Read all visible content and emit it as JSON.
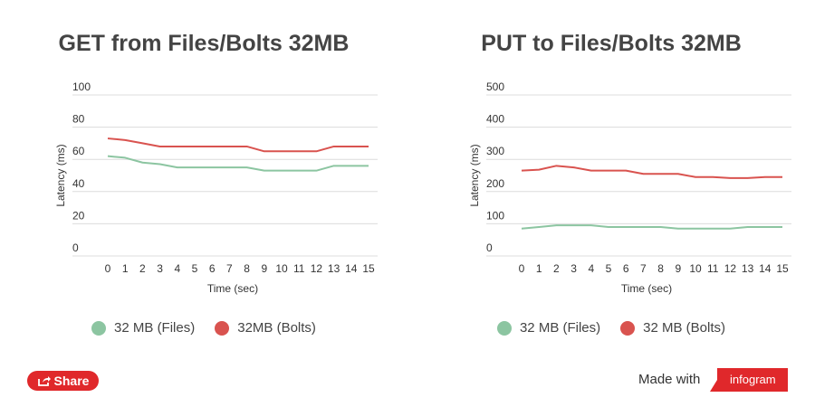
{
  "chart_data": [
    {
      "type": "line",
      "title": "GET from Files/Bolts 32MB",
      "xlabel": "Time (sec)",
      "ylabel": "Latency (ms)",
      "x": [
        0,
        1,
        2,
        3,
        4,
        5,
        6,
        7,
        8,
        9,
        10,
        11,
        12,
        13,
        14,
        15
      ],
      "ylim": [
        0,
        100
      ],
      "yticks": [
        0,
        20,
        40,
        60,
        80,
        100
      ],
      "grid": true,
      "series": [
        {
          "name": "32 MB (Files)",
          "color": "#8cc5a1",
          "values": [
            62,
            61,
            58,
            57,
            55,
            55,
            55,
            55,
            55,
            53,
            53,
            53,
            53,
            56,
            56,
            56
          ]
        },
        {
          "name": "32MB (Bolts)",
          "color": "#d9534f",
          "values": [
            73,
            72,
            70,
            68,
            68,
            68,
            68,
            68,
            68,
            65,
            65,
            65,
            65,
            68,
            68,
            68
          ]
        }
      ]
    },
    {
      "type": "line",
      "title": "PUT to Files/Bolts 32MB",
      "xlabel": "Time (sec)",
      "ylabel": "Latency (ms)",
      "x": [
        0,
        1,
        2,
        3,
        4,
        5,
        6,
        7,
        8,
        9,
        10,
        11,
        12,
        13,
        14,
        15
      ],
      "ylim": [
        0,
        500
      ],
      "yticks": [
        0,
        100,
        200,
        300,
        400,
        500
      ],
      "grid": true,
      "series": [
        {
          "name": "32 MB (Files)",
          "color": "#8cc5a1",
          "values": [
            85,
            90,
            95,
            95,
            95,
            90,
            90,
            90,
            90,
            85,
            85,
            85,
            85,
            90,
            90,
            90
          ]
        },
        {
          "name": "32 MB (Bolts)",
          "color": "#d9534f",
          "values": [
            265,
            268,
            280,
            275,
            265,
            265,
            265,
            255,
            255,
            255,
            245,
            245,
            242,
            242,
            245,
            245
          ]
        }
      ]
    }
  ],
  "footer": {
    "share_label": "Share",
    "made_with_label": "Made with",
    "brand_label": "infogram",
    "brand_color": "#e0282b"
  }
}
